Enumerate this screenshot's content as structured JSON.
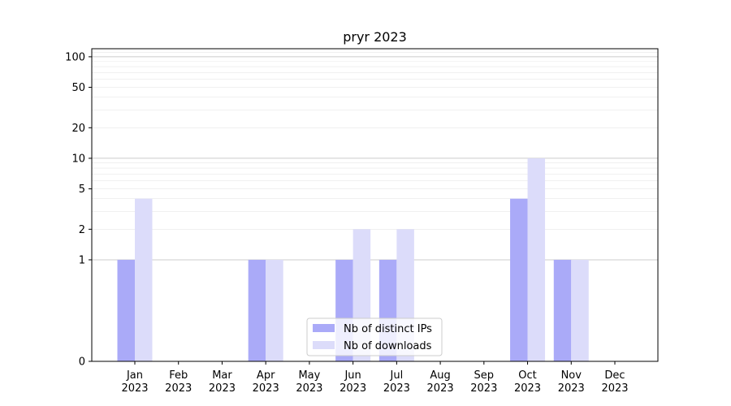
{
  "chart_data": {
    "type": "bar",
    "title": "pryr 2023",
    "xlabel": "",
    "ylabel": "",
    "yscale": "symlog",
    "ylim": [
      0,
      120
    ],
    "y_ticks": [
      {
        "value": 0,
        "label": "0"
      },
      {
        "value": 1,
        "label": "1"
      },
      {
        "value": 2,
        "label": "2"
      },
      {
        "value": 5,
        "label": "5"
      },
      {
        "value": 10,
        "label": "10"
      },
      {
        "value": 20,
        "label": "20"
      },
      {
        "value": 50,
        "label": "50"
      },
      {
        "value": 100,
        "label": "100"
      }
    ],
    "categories": [
      {
        "month": "Jan",
        "year": "2023"
      },
      {
        "month": "Feb",
        "year": "2023"
      },
      {
        "month": "Mar",
        "year": "2023"
      },
      {
        "month": "Apr",
        "year": "2023"
      },
      {
        "month": "May",
        "year": "2023"
      },
      {
        "month": "Jun",
        "year": "2023"
      },
      {
        "month": "Jul",
        "year": "2023"
      },
      {
        "month": "Aug",
        "year": "2023"
      },
      {
        "month": "Sep",
        "year": "2023"
      },
      {
        "month": "Oct",
        "year": "2023"
      },
      {
        "month": "Nov",
        "year": "2023"
      },
      {
        "month": "Dec",
        "year": "2023"
      }
    ],
    "series": [
      {
        "name": "Nb of distinct IPs",
        "color": "#aaaaf8",
        "values": [
          1,
          0,
          0,
          1,
          0,
          1,
          1,
          0,
          0,
          4,
          1,
          0
        ]
      },
      {
        "name": "Nb of downloads",
        "color": "#dcdcfa",
        "values": [
          4,
          0,
          0,
          1,
          0,
          2,
          2,
          0,
          0,
          10,
          1,
          0
        ]
      }
    ],
    "grid": true,
    "legend_position": "lower-center"
  }
}
